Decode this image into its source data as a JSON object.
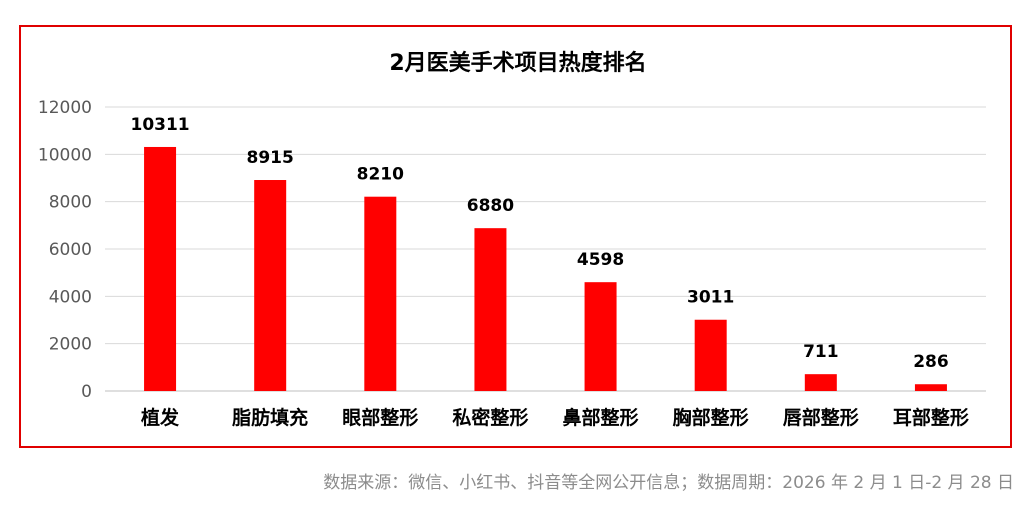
{
  "chart_data": {
    "type": "bar",
    "title": "2月医美手术项目热度排名",
    "categories": [
      "植发",
      "脂肪填充",
      "眼部整形",
      "私密整形",
      "鼻部整形",
      "胸部整形",
      "唇部整形",
      "耳部整形"
    ],
    "values": [
      10311,
      8915,
      8210,
      6880,
      4598,
      3011,
      711,
      286
    ],
    "ylim": [
      0,
      12000
    ],
    "yticks": [
      0,
      2000,
      4000,
      6000,
      8000,
      10000,
      12000
    ],
    "xlabel": "",
    "ylabel": "",
    "grid": true,
    "legend": "none",
    "bar_color": "#ff0000"
  },
  "footer": {
    "source": "数据来源：微信、小红书、抖音等全网公开信息；数据周期：2026 年 2 月 1 日-2 月 28 日"
  },
  "colors": {
    "border": "#e00000",
    "grid": "#d9d9d9",
    "axis_text": "#595959",
    "source_text": "#8c8c8c"
  }
}
